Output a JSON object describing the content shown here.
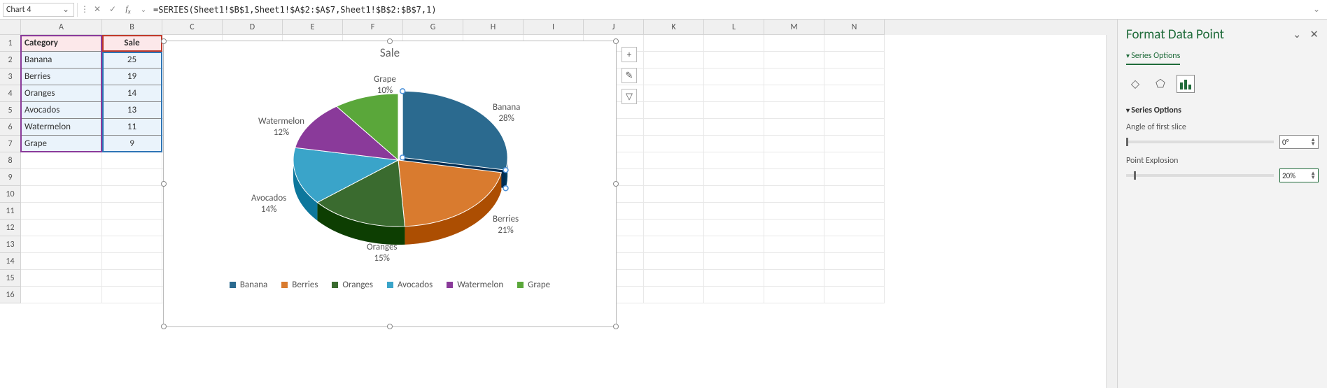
{
  "formula_bar": {
    "name_box": "Chart 4",
    "cancel_glyph": "✕",
    "enter_glyph": "✓",
    "fx_glyph": "fx",
    "dropdown_glyph": "⌄",
    "formula": "=SERIES(Sheet1!$B$1,Sheet1!$A$2:$A$7,Sheet1!$B$2:$B$7,1)",
    "expand_glyph": "⌄"
  },
  "columns": [
    "A",
    "B",
    "C",
    "D",
    "E",
    "F",
    "G",
    "H",
    "I",
    "J",
    "K",
    "L",
    "M",
    "N"
  ],
  "row_numbers": [
    "1",
    "2",
    "3",
    "4",
    "5",
    "6",
    "7",
    "8",
    "9",
    "10",
    "11",
    "12",
    "13",
    "14",
    "15",
    "16"
  ],
  "table": {
    "headers": {
      "category": "Category",
      "sale": "Sale"
    },
    "rows": [
      {
        "category": "Banana",
        "sale": "25"
      },
      {
        "category": "Berries",
        "sale": "19"
      },
      {
        "category": "Oranges",
        "sale": "14"
      },
      {
        "category": "Avocados",
        "sale": "13"
      },
      {
        "category": "Watermelon",
        "sale": "11"
      },
      {
        "category": "Grape",
        "sale": "9"
      }
    ],
    "header_bg": "#fce8ea",
    "highlight_bg": "#eaf3fb",
    "selection_border": "#1a7a3f"
  },
  "chart": {
    "type": "pie-3d",
    "title": "Sale",
    "title_fontsize": 17,
    "title_color": "#666666",
    "background_color": "#ffffff",
    "exploded_index": 0,
    "explosion_pct": 20,
    "series": [
      {
        "name": "Banana",
        "pct": 28,
        "label": "Banana\n28%",
        "color": "#2b6a8f"
      },
      {
        "name": "Berries",
        "pct": 21,
        "label": "Berries\n21%",
        "color": "#d97b2f"
      },
      {
        "name": "Oranges",
        "pct": 15,
        "label": "Oranges\n15%",
        "color": "#3a6b2f"
      },
      {
        "name": "Avocados",
        "pct": 14,
        "label": "Avocados\n14%",
        "color": "#3aa4c9"
      },
      {
        "name": "Watermelon",
        "pct": 12,
        "label": "Watermelon\n12%",
        "color": "#8a3a9a"
      },
      {
        "name": "Grape",
        "pct": 10,
        "label": "Grape\n10%",
        "color": "#5aa73a"
      }
    ],
    "label_fontsize": 13,
    "label_color": "#555555",
    "legend_fontsize": 13,
    "side_buttons": {
      "plus": "+",
      "brush": "✎",
      "filter": "▽"
    }
  },
  "panel": {
    "title": "Format Data Point",
    "collapse_glyph": "⌄",
    "close_glyph": "✕",
    "dropdown_label": "Series Options",
    "icons": {
      "fill": "◇",
      "effects": "⬠",
      "series": "▮▮▮"
    },
    "section_header": "Series Options",
    "angle_label": "Angle of first slice",
    "angle_value": "0°",
    "explosion_label": "Point Explosion",
    "explosion_value": "20%",
    "angle_slider_pos": 0,
    "explosion_slider_pos": 5
  }
}
